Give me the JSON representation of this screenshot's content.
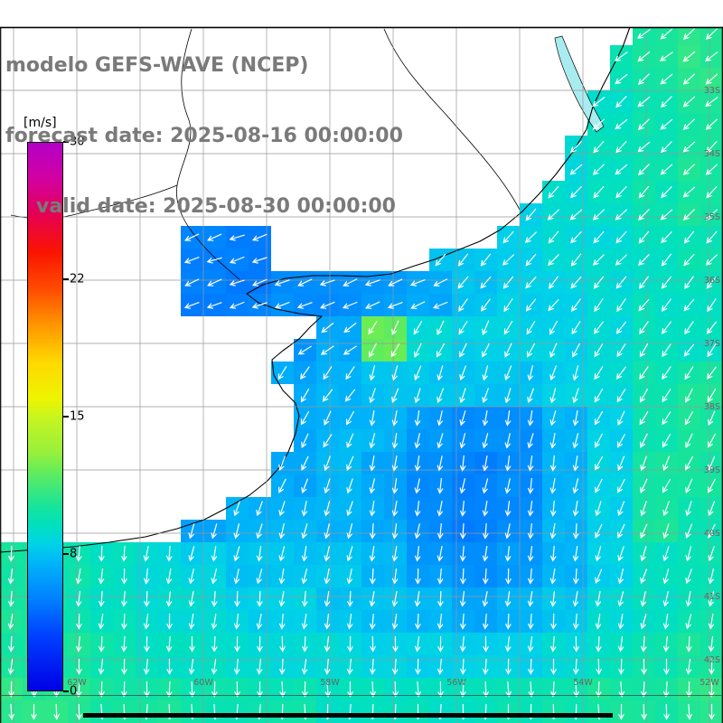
{
  "header": {
    "line1": "modelo GEFS-WAVE (NCEP)",
    "line2": "forecast date: 2025-08-16 00:00:00",
    "line3": "valid date: 2025-08-30 00:00:00",
    "color": "#7a7a7a"
  },
  "colorbar": {
    "unit_label": "[m/s]",
    "min": 0,
    "max": 30,
    "tick_labels": [
      "30",
      "22",
      "15",
      "8",
      "0"
    ],
    "stops": [
      [
        0,
        "#0000e6"
      ],
      [
        3,
        "#0040ff"
      ],
      [
        5,
        "#0080ff"
      ],
      [
        7,
        "#00b4f8"
      ],
      [
        8,
        "#00d2e8"
      ],
      [
        9,
        "#00e0c0"
      ],
      [
        10,
        "#14e49e"
      ],
      [
        11,
        "#3ce87e"
      ],
      [
        12,
        "#64ec5a"
      ],
      [
        13,
        "#96f03c"
      ],
      [
        15,
        "#c8f51e"
      ],
      [
        16,
        "#eef400"
      ],
      [
        18,
        "#ffd800"
      ],
      [
        20,
        "#ff9600"
      ],
      [
        22,
        "#ff4b00"
      ],
      [
        24,
        "#fa1400"
      ],
      [
        26,
        "#e60050"
      ],
      [
        28,
        "#d200a0"
      ],
      [
        30,
        "#b400c8"
      ]
    ]
  },
  "axes": {
    "lat_labels": [
      "33S",
      "34S",
      "35S",
      "36S",
      "37S",
      "38S",
      "39S",
      "40S",
      "41S",
      "42S"
    ],
    "lon_labels": [
      "62W",
      "60W",
      "58W",
      "56W",
      "54W",
      "52W"
    ],
    "color": "#666666"
  },
  "map_style": {
    "land_color": "#ffffff",
    "coast_color": "#000000",
    "grid_color": "#999999",
    "ocean_arrow_color": "#ffffff",
    "lagoon_color": "#a9ecf0"
  },
  "chart_data": {
    "type": "heatmap",
    "title": "modelo GEFS-WAVE (NCEP)",
    "units": "m/s",
    "value_range": [
      0,
      30
    ],
    "colorbar_ticks": [
      30,
      22,
      15,
      8,
      0
    ],
    "legend_position": "left",
    "cell_size_px": 50,
    "grid": [
      [
        null,
        null,
        null,
        null,
        null,
        null,
        null,
        null,
        null,
        null,
        null,
        null,
        null,
        9.5,
        10,
        10.5
      ],
      [
        null,
        null,
        null,
        null,
        null,
        null,
        null,
        null,
        null,
        null,
        null,
        null,
        null,
        9.5,
        10,
        10.5
      ],
      [
        null,
        null,
        null,
        null,
        null,
        null,
        null,
        null,
        null,
        null,
        null,
        null,
        null,
        9,
        9.5,
        10
      ],
      [
        null,
        null,
        null,
        null,
        null,
        null,
        null,
        null,
        null,
        null,
        null,
        null,
        8.5,
        9,
        9.5,
        10
      ],
      [
        null,
        null,
        null,
        null,
        null,
        null,
        null,
        null,
        null,
        null,
        null,
        8,
        8.5,
        9,
        9.5,
        10
      ],
      [
        null,
        null,
        null,
        null,
        5,
        5,
        null,
        null,
        null,
        7.5,
        7.5,
        8,
        8.5,
        8.5,
        9,
        9.5
      ],
      [
        null,
        null,
        null,
        null,
        5,
        5,
        5.5,
        5.5,
        6,
        6.5,
        7.5,
        8,
        8,
        8.5,
        9,
        9
      ],
      [
        null,
        null,
        null,
        null,
        null,
        null,
        6,
        6.5,
        12,
        8.5,
        8,
        8,
        8,
        8.5,
        9,
        9
      ],
      [
        null,
        null,
        null,
        null,
        null,
        null,
        6.5,
        7,
        7.5,
        7.5,
        7.5,
        7.5,
        8,
        8.5,
        9.5,
        10
      ],
      [
        null,
        null,
        null,
        null,
        null,
        null,
        6.5,
        7,
        7,
        6,
        5.5,
        5.5,
        7,
        8,
        9.5,
        10
      ],
      [
        null,
        null,
        null,
        null,
        null,
        null,
        6.5,
        7,
        6.5,
        5.5,
        5,
        5.5,
        7,
        8,
        10,
        10
      ],
      [
        null,
        null,
        null,
        null,
        6.5,
        7,
        7,
        7,
        6.5,
        5.5,
        5,
        5.5,
        7,
        8,
        10,
        9.5
      ],
      [
        10,
        9.5,
        9,
        8.5,
        8,
        7.5,
        7.5,
        7.5,
        7,
        6,
        5.5,
        6,
        7,
        8,
        9,
        9.5
      ],
      [
        10,
        9.5,
        9,
        8.5,
        8.5,
        8,
        8,
        7.5,
        7.5,
        7,
        6.5,
        7,
        7.5,
        8.5,
        9,
        9.5
      ],
      [
        10,
        10,
        9.5,
        9,
        9,
        8.5,
        8.5,
        8.5,
        8,
        8,
        8,
        8,
        8.5,
        9,
        9.5,
        10
      ],
      [
        10.5,
        10.5,
        10,
        10,
        9.5,
        9.5,
        9.5,
        9,
        9,
        9,
        9,
        9.5,
        9.5,
        10,
        10,
        10.5
      ]
    ],
    "directions_deg": [
      [
        null,
        null,
        null,
        null,
        null,
        null,
        null,
        null,
        null,
        null,
        null,
        null,
        null,
        230,
        230,
        230
      ],
      [
        null,
        null,
        null,
        null,
        null,
        null,
        null,
        null,
        null,
        null,
        null,
        null,
        null,
        230,
        230,
        230
      ],
      [
        null,
        null,
        null,
        null,
        null,
        null,
        null,
        null,
        null,
        null,
        null,
        null,
        null,
        228,
        228,
        228
      ],
      [
        null,
        null,
        null,
        null,
        null,
        null,
        null,
        null,
        null,
        null,
        null,
        null,
        226,
        226,
        226,
        226
      ],
      [
        null,
        null,
        null,
        null,
        null,
        null,
        null,
        null,
        null,
        null,
        null,
        224,
        224,
        224,
        224,
        224
      ],
      [
        null,
        null,
        null,
        null,
        250,
        250,
        null,
        null,
        null,
        222,
        222,
        222,
        222,
        222,
        222,
        222
      ],
      [
        null,
        null,
        null,
        null,
        248,
        248,
        248,
        248,
        248,
        248,
        218,
        218,
        218,
        218,
        218,
        218
      ],
      [
        null,
        null,
        null,
        null,
        null,
        null,
        235,
        235,
        208,
        208,
        208,
        208,
        208,
        215,
        215,
        215
      ],
      [
        null,
        null,
        null,
        null,
        null,
        null,
        215,
        215,
        198,
        198,
        198,
        198,
        198,
        212,
        212,
        212
      ],
      [
        null,
        null,
        null,
        null,
        null,
        null,
        208,
        208,
        192,
        192,
        192,
        192,
        192,
        208,
        208,
        208
      ],
      [
        null,
        null,
        null,
        null,
        null,
        null,
        202,
        202,
        190,
        190,
        190,
        190,
        190,
        205,
        205,
        205
      ],
      [
        null,
        null,
        null,
        null,
        196,
        196,
        196,
        196,
        188,
        188,
        188,
        188,
        188,
        202,
        202,
        202
      ],
      [
        186,
        186,
        186,
        186,
        192,
        192,
        192,
        192,
        186,
        186,
        186,
        186,
        186,
        198,
        198,
        198
      ],
      [
        186,
        186,
        186,
        186,
        186,
        186,
        186,
        186,
        186,
        186,
        186,
        186,
        186,
        192,
        192,
        192
      ],
      [
        183,
        183,
        183,
        183,
        183,
        183,
        183,
        183,
        183,
        183,
        183,
        183,
        183,
        183,
        183,
        183
      ],
      [
        180,
        180,
        180,
        180,
        180,
        180,
        180,
        180,
        180,
        180,
        180,
        180,
        180,
        180,
        180,
        180
      ]
    ]
  }
}
